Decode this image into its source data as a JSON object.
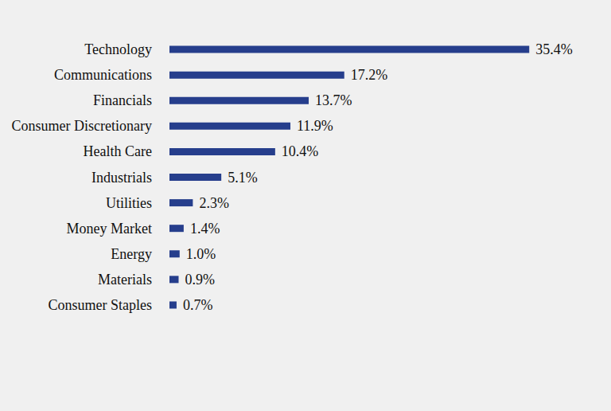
{
  "chart_data": {
    "type": "bar",
    "orientation": "horizontal",
    "categories": [
      "Technology",
      "Communications",
      "Financials",
      "Consumer Discretionary",
      "Health Care",
      "Industrials",
      "Utilities",
      "Money Market",
      "Energy",
      "Materials",
      "Consumer Staples"
    ],
    "values": [
      35.4,
      17.2,
      13.7,
      11.9,
      10.4,
      5.1,
      2.3,
      1.4,
      1.0,
      0.9,
      0.7
    ],
    "value_labels": [
      "35.4%",
      "17.2%",
      "13.7%",
      "11.9%",
      "10.4%",
      "5.1%",
      "2.3%",
      "1.4%",
      "1.0%",
      "0.9%",
      "0.7%"
    ],
    "color": "#263e8c",
    "xlim": [
      0,
      40
    ],
    "data_labels": true,
    "grid": false,
    "tick_labels": "y"
  }
}
